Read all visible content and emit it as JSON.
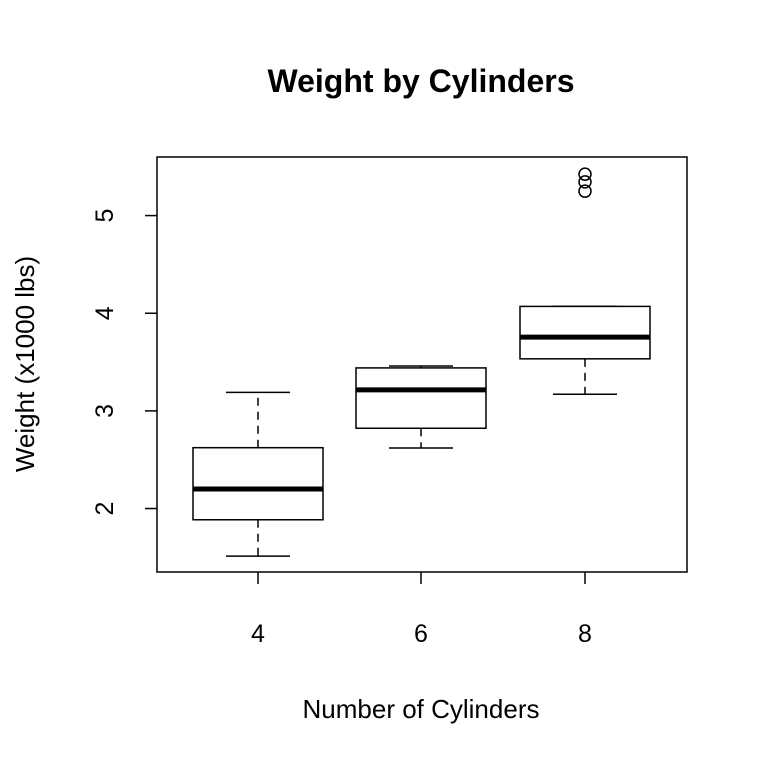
{
  "chart_data": {
    "type": "boxplot",
    "title": "Weight by Cylinders",
    "xlabel": "Number of Cylinders",
    "ylabel": "Weight (x1000 lbs)",
    "categories": [
      "4",
      "6",
      "8"
    ],
    "boxes": [
      {
        "category": "4",
        "whisker_low": 1.513,
        "q1": 1.885,
        "median": 2.2,
        "q3": 2.623,
        "whisker_high": 3.19,
        "outliers": []
      },
      {
        "category": "6",
        "whisker_low": 2.62,
        "q1": 2.822,
        "median": 3.215,
        "q3": 3.44,
        "whisker_high": 3.46,
        "outliers": []
      },
      {
        "category": "8",
        "whisker_low": 3.17,
        "q1": 3.533,
        "median": 3.755,
        "q3": 4.07,
        "whisker_high": 4.07,
        "outliers": [
          5.25,
          5.345,
          5.424
        ]
      }
    ],
    "ylim": [
      1.35,
      5.6
    ],
    "yticks": [
      2,
      3,
      4,
      5
    ],
    "grid": false,
    "legend": "none",
    "colors": {
      "box_fill": "#ffffff",
      "stroke": "#000000"
    }
  }
}
